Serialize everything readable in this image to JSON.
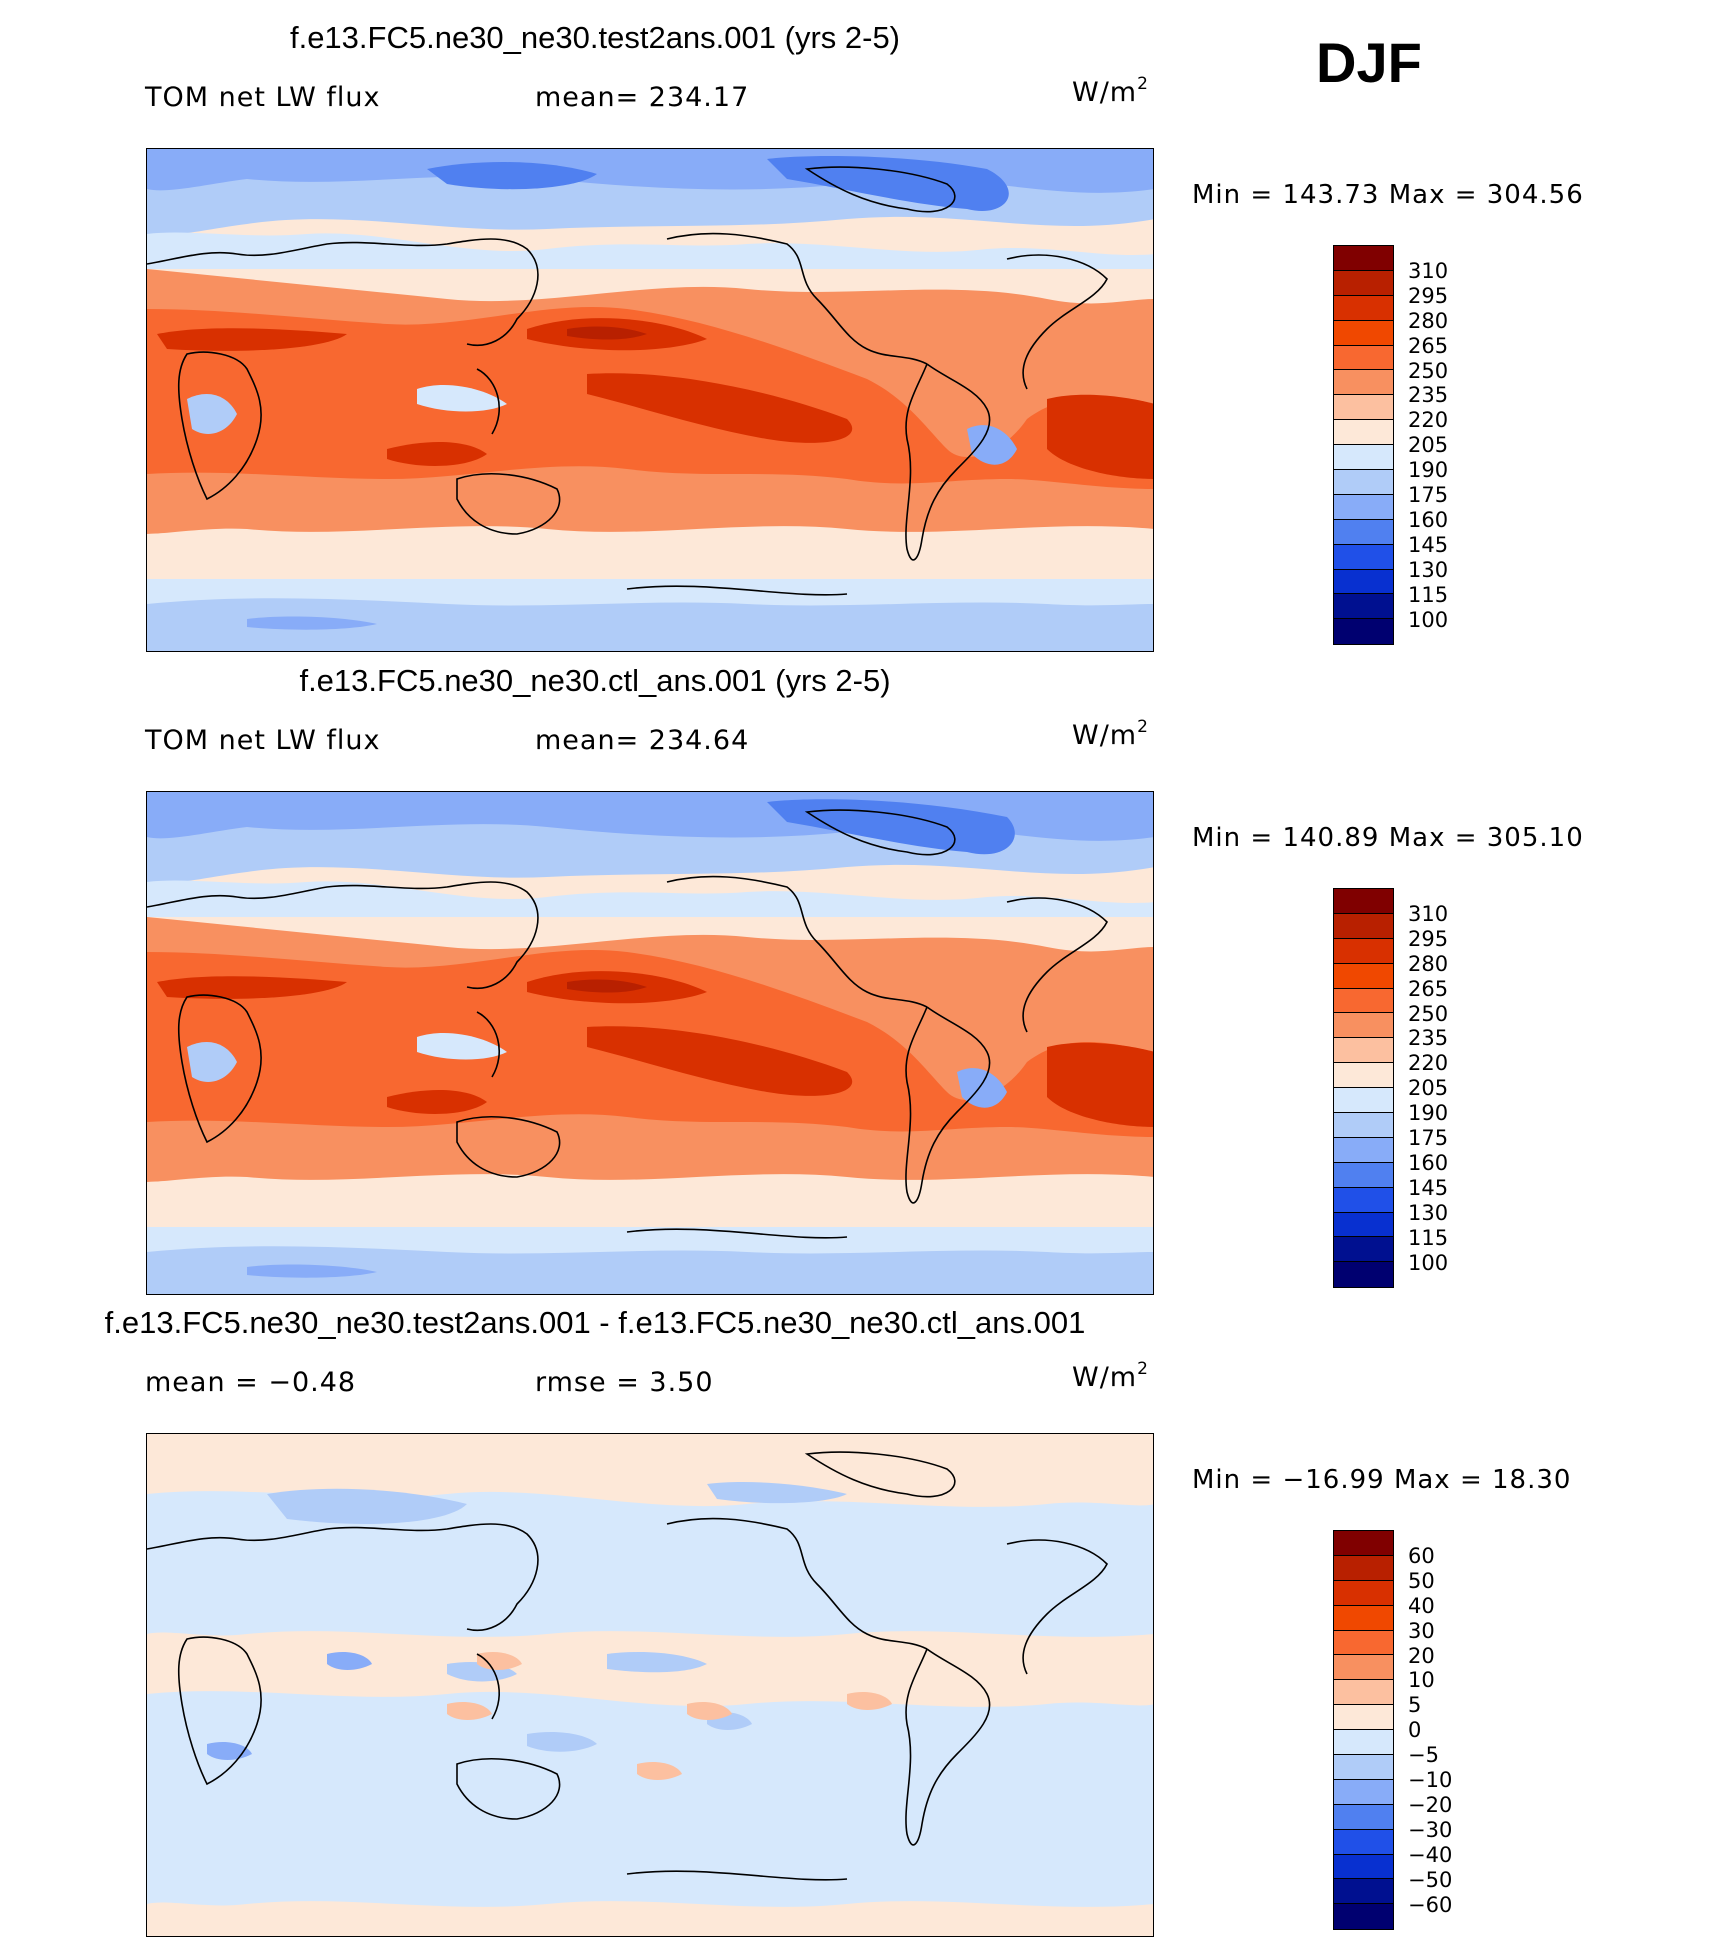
{
  "season": "DJF",
  "panels": [
    {
      "title": "f.e13.FC5.ne30_ne30.test2ans.001 (yrs 2-5)",
      "left_label": "TOM  net  LW  flux",
      "mid_label": "mean=  234.17",
      "units_base": "W/m",
      "units_sup": "2",
      "min_label": "Min  =  143.73",
      "max_label": "Max  =  304.56",
      "colorbar_labels": [
        "310",
        "295",
        "280",
        "265",
        "250",
        "235",
        "220",
        "205",
        "190",
        "175",
        "160",
        "145",
        "130",
        "115",
        "100"
      ]
    },
    {
      "title": "f.e13.FC5.ne30_ne30.ctl_ans.001 (yrs 2-5)",
      "left_label": "TOM  net  LW  flux",
      "mid_label": "mean=  234.64",
      "units_base": "W/m",
      "units_sup": "2",
      "min_label": "Min  =  140.89",
      "max_label": "Max  =  305.10",
      "colorbar_labels": [
        "310",
        "295",
        "280",
        "265",
        "250",
        "235",
        "220",
        "205",
        "190",
        "175",
        "160",
        "145",
        "130",
        "115",
        "100"
      ]
    },
    {
      "title": "f.e13.FC5.ne30_ne30.test2ans.001 - f.e13.FC5.ne30_ne30.ctl_ans.001",
      "left_label": "mean  =    −0.48",
      "mid_label": "rmse  =      3.50",
      "units_base": "W/m",
      "units_sup": "2",
      "min_label": "Min  =  −16.99",
      "max_label": "Max  =    18.30",
      "colorbar_labels": [
        "60",
        "50",
        "40",
        "30",
        "20",
        "10",
        "5",
        "0",
        "−5",
        "−10",
        "−20",
        "−30",
        "−40",
        "−50",
        "−60"
      ]
    }
  ],
  "colors": {
    "abs_scale": [
      "#800000",
      "#b82000",
      "#d83000",
      "#f04800",
      "#f86830",
      "#f89060",
      "#fcc0a0",
      "#fde8d8",
      "#d6e8fc",
      "#b0ccf8",
      "#88acf8",
      "#5080f0",
      "#2050e8",
      "#0830d0",
      "#001090",
      "#000070"
    ],
    "diff_scale": [
      "#800000",
      "#b82000",
      "#d83000",
      "#f04800",
      "#f86830",
      "#f89060",
      "#fcc0a0",
      "#fde8d8",
      "#d6e8fc",
      "#b0ccf8",
      "#88acf8",
      "#5080f0",
      "#2050e8",
      "#0830d0",
      "#001090",
      "#000070"
    ]
  }
}
